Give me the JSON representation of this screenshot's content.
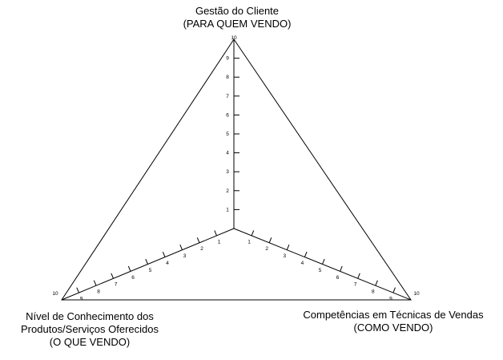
{
  "axes": {
    "top": {
      "title": "Gestão do Cliente",
      "subtitle": "(PARA QUEM VENDO)"
    },
    "left": {
      "title": "Nível de Conhecimento dos",
      "title2": "Produtos/Serviços Oferecidos",
      "subtitle": "(O QUE VENDO)"
    },
    "right": {
      "title": "Competências em Técnicas de Vendas",
      "subtitle": "(COMO VENDO)"
    }
  },
  "scale": {
    "min": 0,
    "max": 10,
    "ticks": [
      "1",
      "2",
      "3",
      "4",
      "5",
      "6",
      "7",
      "8",
      "9",
      "10"
    ]
  },
  "colors": {
    "line": "#000000",
    "background": "#ffffff"
  }
}
